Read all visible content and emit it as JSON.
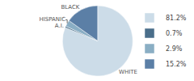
{
  "chart_data": {
    "type": "pie",
    "categories": [
      "WHITE",
      "A.I.",
      "HISPANIC",
      "BLACK"
    ],
    "values": [
      81.2,
      0.7,
      2.9,
      15.2
    ],
    "value_labels": [
      "81.2%",
      "0.7%",
      "2.9%",
      "15.2%"
    ],
    "colors": [
      "#ccdce8",
      "#4a6e8a",
      "#8aaec4",
      "#5b7fa6"
    ],
    "legend": "right"
  }
}
